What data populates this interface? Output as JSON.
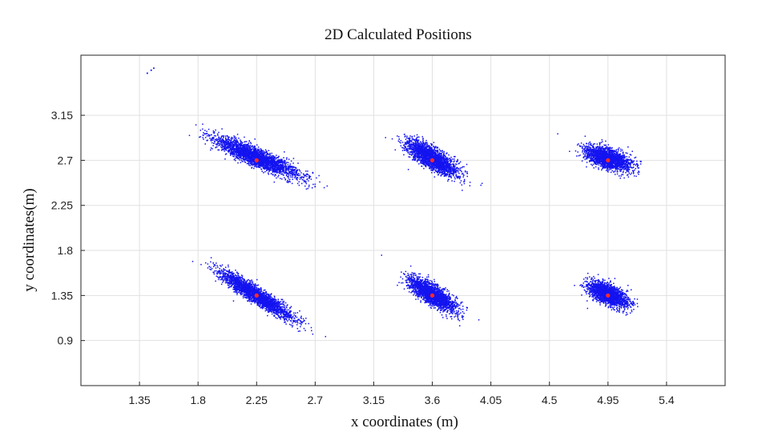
{
  "chart_data": {
    "type": "scatter",
    "title": "2D Calculated Positions",
    "xlabel": "x coordinates (m)",
    "ylabel": "y coordinates(m)",
    "xlim": [
      0.9,
      5.85
    ],
    "ylim": [
      0.45,
      3.75
    ],
    "x_ticks": [
      1.35,
      1.8,
      2.25,
      2.7,
      3.15,
      3.6,
      4.05,
      4.5,
      4.95,
      5.4
    ],
    "x_tick_labels": [
      "1.35",
      "1.8",
      "2.25",
      "2.7",
      "3.15",
      "3.6",
      "4.05",
      "4.5",
      "4.95",
      "5.4"
    ],
    "y_ticks": [
      0.9,
      1.35,
      1.8,
      2.25,
      2.7,
      3.15
    ],
    "y_tick_labels": [
      "0.9",
      "1.35",
      "1.8",
      "2.25",
      "2.7",
      "3.15"
    ],
    "grid": true,
    "colors": {
      "points": "#1414f0",
      "reference": "#ff2a2a"
    },
    "reference_points": [
      {
        "x": 2.25,
        "y": 2.7
      },
      {
        "x": 3.6,
        "y": 2.7
      },
      {
        "x": 4.95,
        "y": 2.7
      },
      {
        "x": 2.25,
        "y": 1.35
      },
      {
        "x": 3.6,
        "y": 1.35
      },
      {
        "x": 4.95,
        "y": 1.35
      }
    ],
    "clusters": [
      {
        "center": [
          2.25,
          2.73
        ],
        "spread_major": 0.36,
        "spread_minor": 0.08,
        "angle_deg": -30,
        "points": 2600
      },
      {
        "center": [
          3.6,
          2.72
        ],
        "spread_major": 0.24,
        "spread_minor": 0.085,
        "angle_deg": -40,
        "points": 2200
      },
      {
        "center": [
          4.95,
          2.72
        ],
        "spread_major": 0.19,
        "spread_minor": 0.09,
        "angle_deg": -28,
        "points": 2000
      },
      {
        "center": [
          2.25,
          1.35
        ],
        "spread_major": 0.35,
        "spread_minor": 0.065,
        "angle_deg": -40,
        "points": 2600
      },
      {
        "center": [
          3.6,
          1.36
        ],
        "spread_major": 0.23,
        "spread_minor": 0.08,
        "angle_deg": -42,
        "points": 2100
      },
      {
        "center": [
          4.95,
          1.36
        ],
        "spread_major": 0.17,
        "spread_minor": 0.085,
        "angle_deg": -35,
        "points": 1900
      }
    ],
    "outliers": [
      {
        "x": 1.41,
        "y": 3.57
      },
      {
        "x": 1.44,
        "y": 3.6
      },
      {
        "x": 1.46,
        "y": 3.62
      }
    ]
  }
}
